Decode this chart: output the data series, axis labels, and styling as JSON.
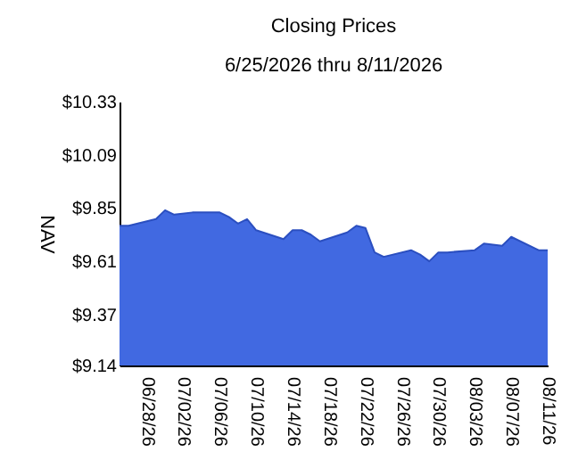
{
  "chart_data": {
    "type": "area",
    "title": "Closing Prices",
    "subtitle": "6/25/2026 thru 8/11/2026",
    "ylabel": "NAV",
    "x": [
      "2026-06-25",
      "2026-06-26",
      "2026-06-29",
      "2026-06-30",
      "2026-07-01",
      "2026-07-03",
      "2026-07-06",
      "2026-07-07",
      "2026-07-08",
      "2026-07-09",
      "2026-07-10",
      "2026-07-13",
      "2026-07-14",
      "2026-07-15",
      "2026-07-16",
      "2026-07-17",
      "2026-07-20",
      "2026-07-21",
      "2026-07-22",
      "2026-07-23",
      "2026-07-24",
      "2026-07-27",
      "2026-07-28",
      "2026-07-29",
      "2026-07-30",
      "2026-07-31",
      "2026-08-03",
      "2026-08-04",
      "2026-08-06",
      "2026-08-07",
      "2026-08-10",
      "2026-08-11"
    ],
    "series": [
      {
        "color": "#4169e1",
        "values": [
          9.77,
          9.77,
          9.8,
          9.84,
          9.82,
          9.83,
          9.83,
          9.81,
          9.78,
          9.8,
          9.75,
          9.71,
          9.75,
          9.75,
          9.73,
          9.7,
          9.74,
          9.77,
          9.76,
          9.65,
          9.63,
          9.66,
          9.64,
          9.61,
          9.65,
          9.65,
          9.66,
          9.69,
          9.68,
          9.72,
          9.66,
          9.66
        ]
      }
    ],
    "ylim": [
      9.14,
      10.33
    ],
    "yticks": [
      {
        "value": 9.14,
        "label": "$9.14"
      },
      {
        "value": 9.37,
        "label": "$9.37"
      },
      {
        "value": 9.61,
        "label": "$9.61"
      },
      {
        "value": 9.85,
        "label": "$9.85"
      },
      {
        "value": 10.09,
        "label": "$10.09"
      },
      {
        "value": 10.33,
        "label": "$10.33"
      }
    ],
    "xlim": [
      "2026-06-25",
      "2026-08-11"
    ],
    "xticks": [
      {
        "value": "2026-06-28",
        "label": "06/28/26"
      },
      {
        "value": "2026-07-02",
        "label": "07/02/26"
      },
      {
        "value": "2026-07-06",
        "label": "07/06/26"
      },
      {
        "value": "2026-07-10",
        "label": "07/10/26"
      },
      {
        "value": "2026-07-14",
        "label": "07/14/26"
      },
      {
        "value": "2026-07-18",
        "label": "07/18/26"
      },
      {
        "value": "2026-07-22",
        "label": "07/22/26"
      },
      {
        "value": "2026-07-26",
        "label": "07/26/26"
      },
      {
        "value": "2026-07-30",
        "label": "07/30/26"
      },
      {
        "value": "2026-08-03",
        "label": "08/03/26"
      },
      {
        "value": "2026-08-07",
        "label": "08/07/26"
      },
      {
        "value": "2026-08-11",
        "label": "08/11/26"
      }
    ]
  }
}
